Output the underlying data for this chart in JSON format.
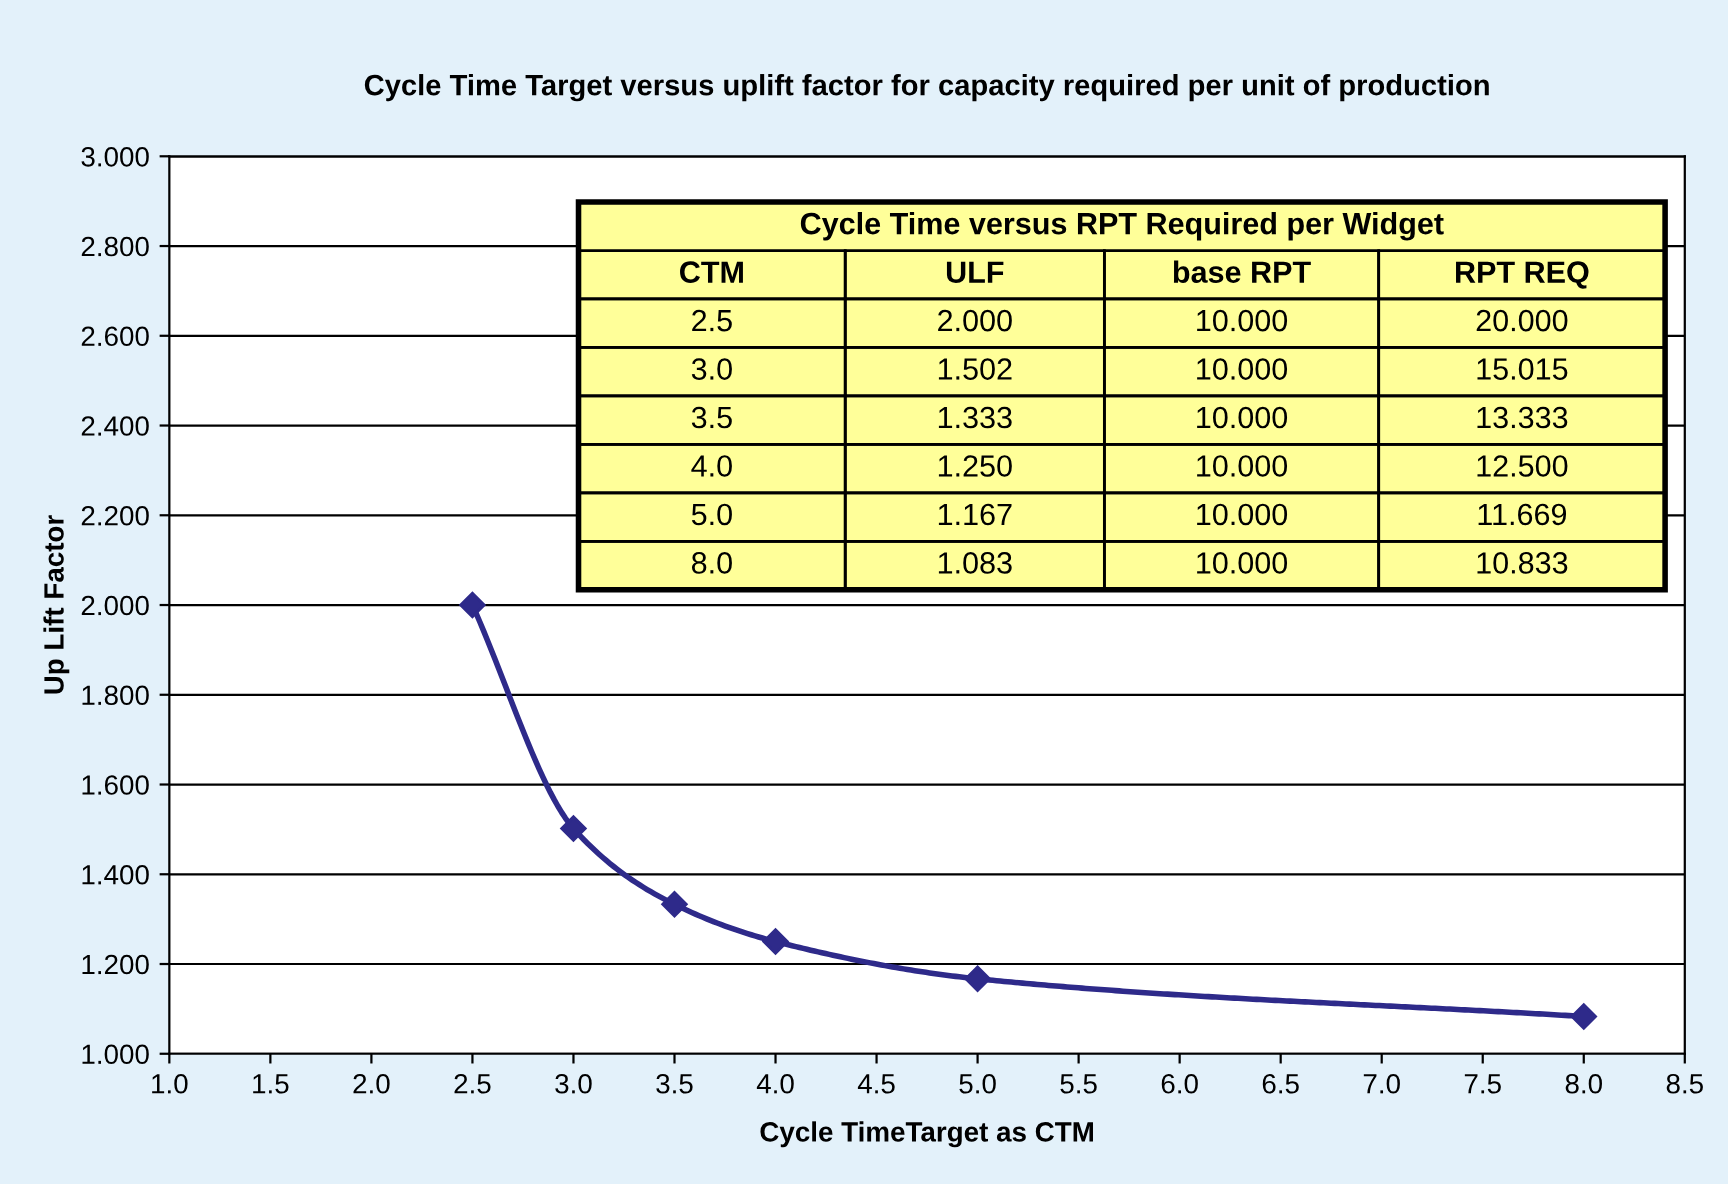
{
  "chart_data": {
    "type": "line",
    "title": "Cycle Time Target versus uplift factor for capacity required per unit of production",
    "xlabel": "Cycle TimeTarget as CTM",
    "ylabel": "Up Lift Factor",
    "x": [
      2.5,
      3.0,
      3.5,
      4.0,
      5.0,
      8.0
    ],
    "series": [
      {
        "color": "#2e2a8a",
        "values": [
          2.0,
          1.502,
          1.333,
          1.25,
          1.167,
          1.083
        ]
      }
    ],
    "xlim": [
      1.0,
      8.5
    ],
    "ylim": [
      1.0,
      3.0
    ],
    "xticks": [
      {
        "value": 1.0,
        "label": "1.0"
      },
      {
        "value": 1.5,
        "label": "1.5"
      },
      {
        "value": 2.0,
        "label": "2.0"
      },
      {
        "value": 2.5,
        "label": "2.5"
      },
      {
        "value": 3.0,
        "label": "3.0"
      },
      {
        "value": 3.5,
        "label": "3.5"
      },
      {
        "value": 4.0,
        "label": "4.0"
      },
      {
        "value": 4.5,
        "label": "4.5"
      },
      {
        "value": 5.0,
        "label": "5.0"
      },
      {
        "value": 5.5,
        "label": "5.5"
      },
      {
        "value": 6.0,
        "label": "6.0"
      },
      {
        "value": 6.5,
        "label": "6.5"
      },
      {
        "value": 7.0,
        "label": "7.0"
      },
      {
        "value": 7.5,
        "label": "7.5"
      },
      {
        "value": 8.0,
        "label": "8.0"
      },
      {
        "value": 8.5,
        "label": "8.5"
      }
    ],
    "yticks": [
      {
        "value": 1.0,
        "label": "1.000"
      },
      {
        "value": 1.2,
        "label": "1.200"
      },
      {
        "value": 1.4,
        "label": "1.400"
      },
      {
        "value": 1.6,
        "label": "1.600"
      },
      {
        "value": 1.8,
        "label": "1.800"
      },
      {
        "value": 2.0,
        "label": "2.000"
      },
      {
        "value": 2.2,
        "label": "2.200"
      },
      {
        "value": 2.4,
        "label": "2.400"
      },
      {
        "value": 2.6,
        "label": "2.600"
      },
      {
        "value": 2.8,
        "label": "2.800"
      },
      {
        "value": 3.0,
        "label": "3.000"
      }
    ],
    "grid": "y",
    "legend": false,
    "marker": "diamond",
    "line_style": "solid",
    "annotations": [
      "Cycle Time versus RPT Required per Widget",
      "CTM",
      "ULF",
      "base RPT",
      "RPT REQ",
      "2.5",
      "2.000",
      "10.000",
      "20.000",
      "3.0",
      "1.502",
      "10.000",
      "15.015",
      "3.5",
      "1.333",
      "10.000",
      "13.333",
      "4.0",
      "1.250",
      "10.000",
      "12.500",
      "5.0",
      "1.167",
      "10.000",
      "11.669",
      "8.0",
      "1.083",
      "10.000",
      "10.833"
    ]
  }
}
